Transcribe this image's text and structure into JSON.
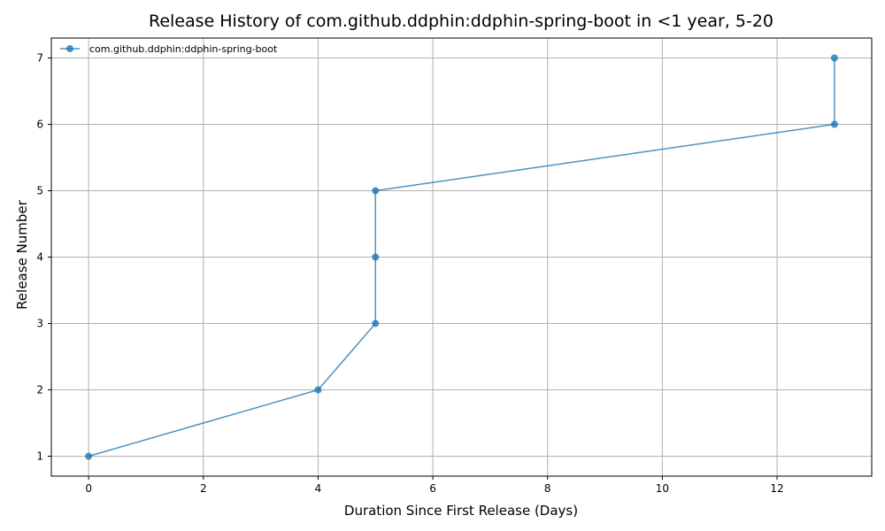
{
  "chart_data": {
    "type": "line",
    "title": "Release History of com.github.ddphin:ddphin-spring-boot in <1 year, 5-20",
    "xlabel": "Duration Since First Release (Days)",
    "ylabel": "Release Number",
    "xlim": [
      -0.65,
      13.65
    ],
    "ylim": [
      0.7,
      7.3
    ],
    "xticks": [
      0,
      2,
      4,
      6,
      8,
      10,
      12
    ],
    "yticks": [
      1,
      2,
      3,
      4,
      5,
      6,
      7
    ],
    "grid": true,
    "legend_position": "top-left",
    "series": [
      {
        "name": "com.github.ddphin:ddphin-spring-boot",
        "color": "#1f77b4",
        "x": [
          0,
          4,
          5,
          5,
          5,
          13,
          13
        ],
        "y": [
          1,
          2,
          3,
          4,
          5,
          6,
          7
        ]
      }
    ]
  }
}
